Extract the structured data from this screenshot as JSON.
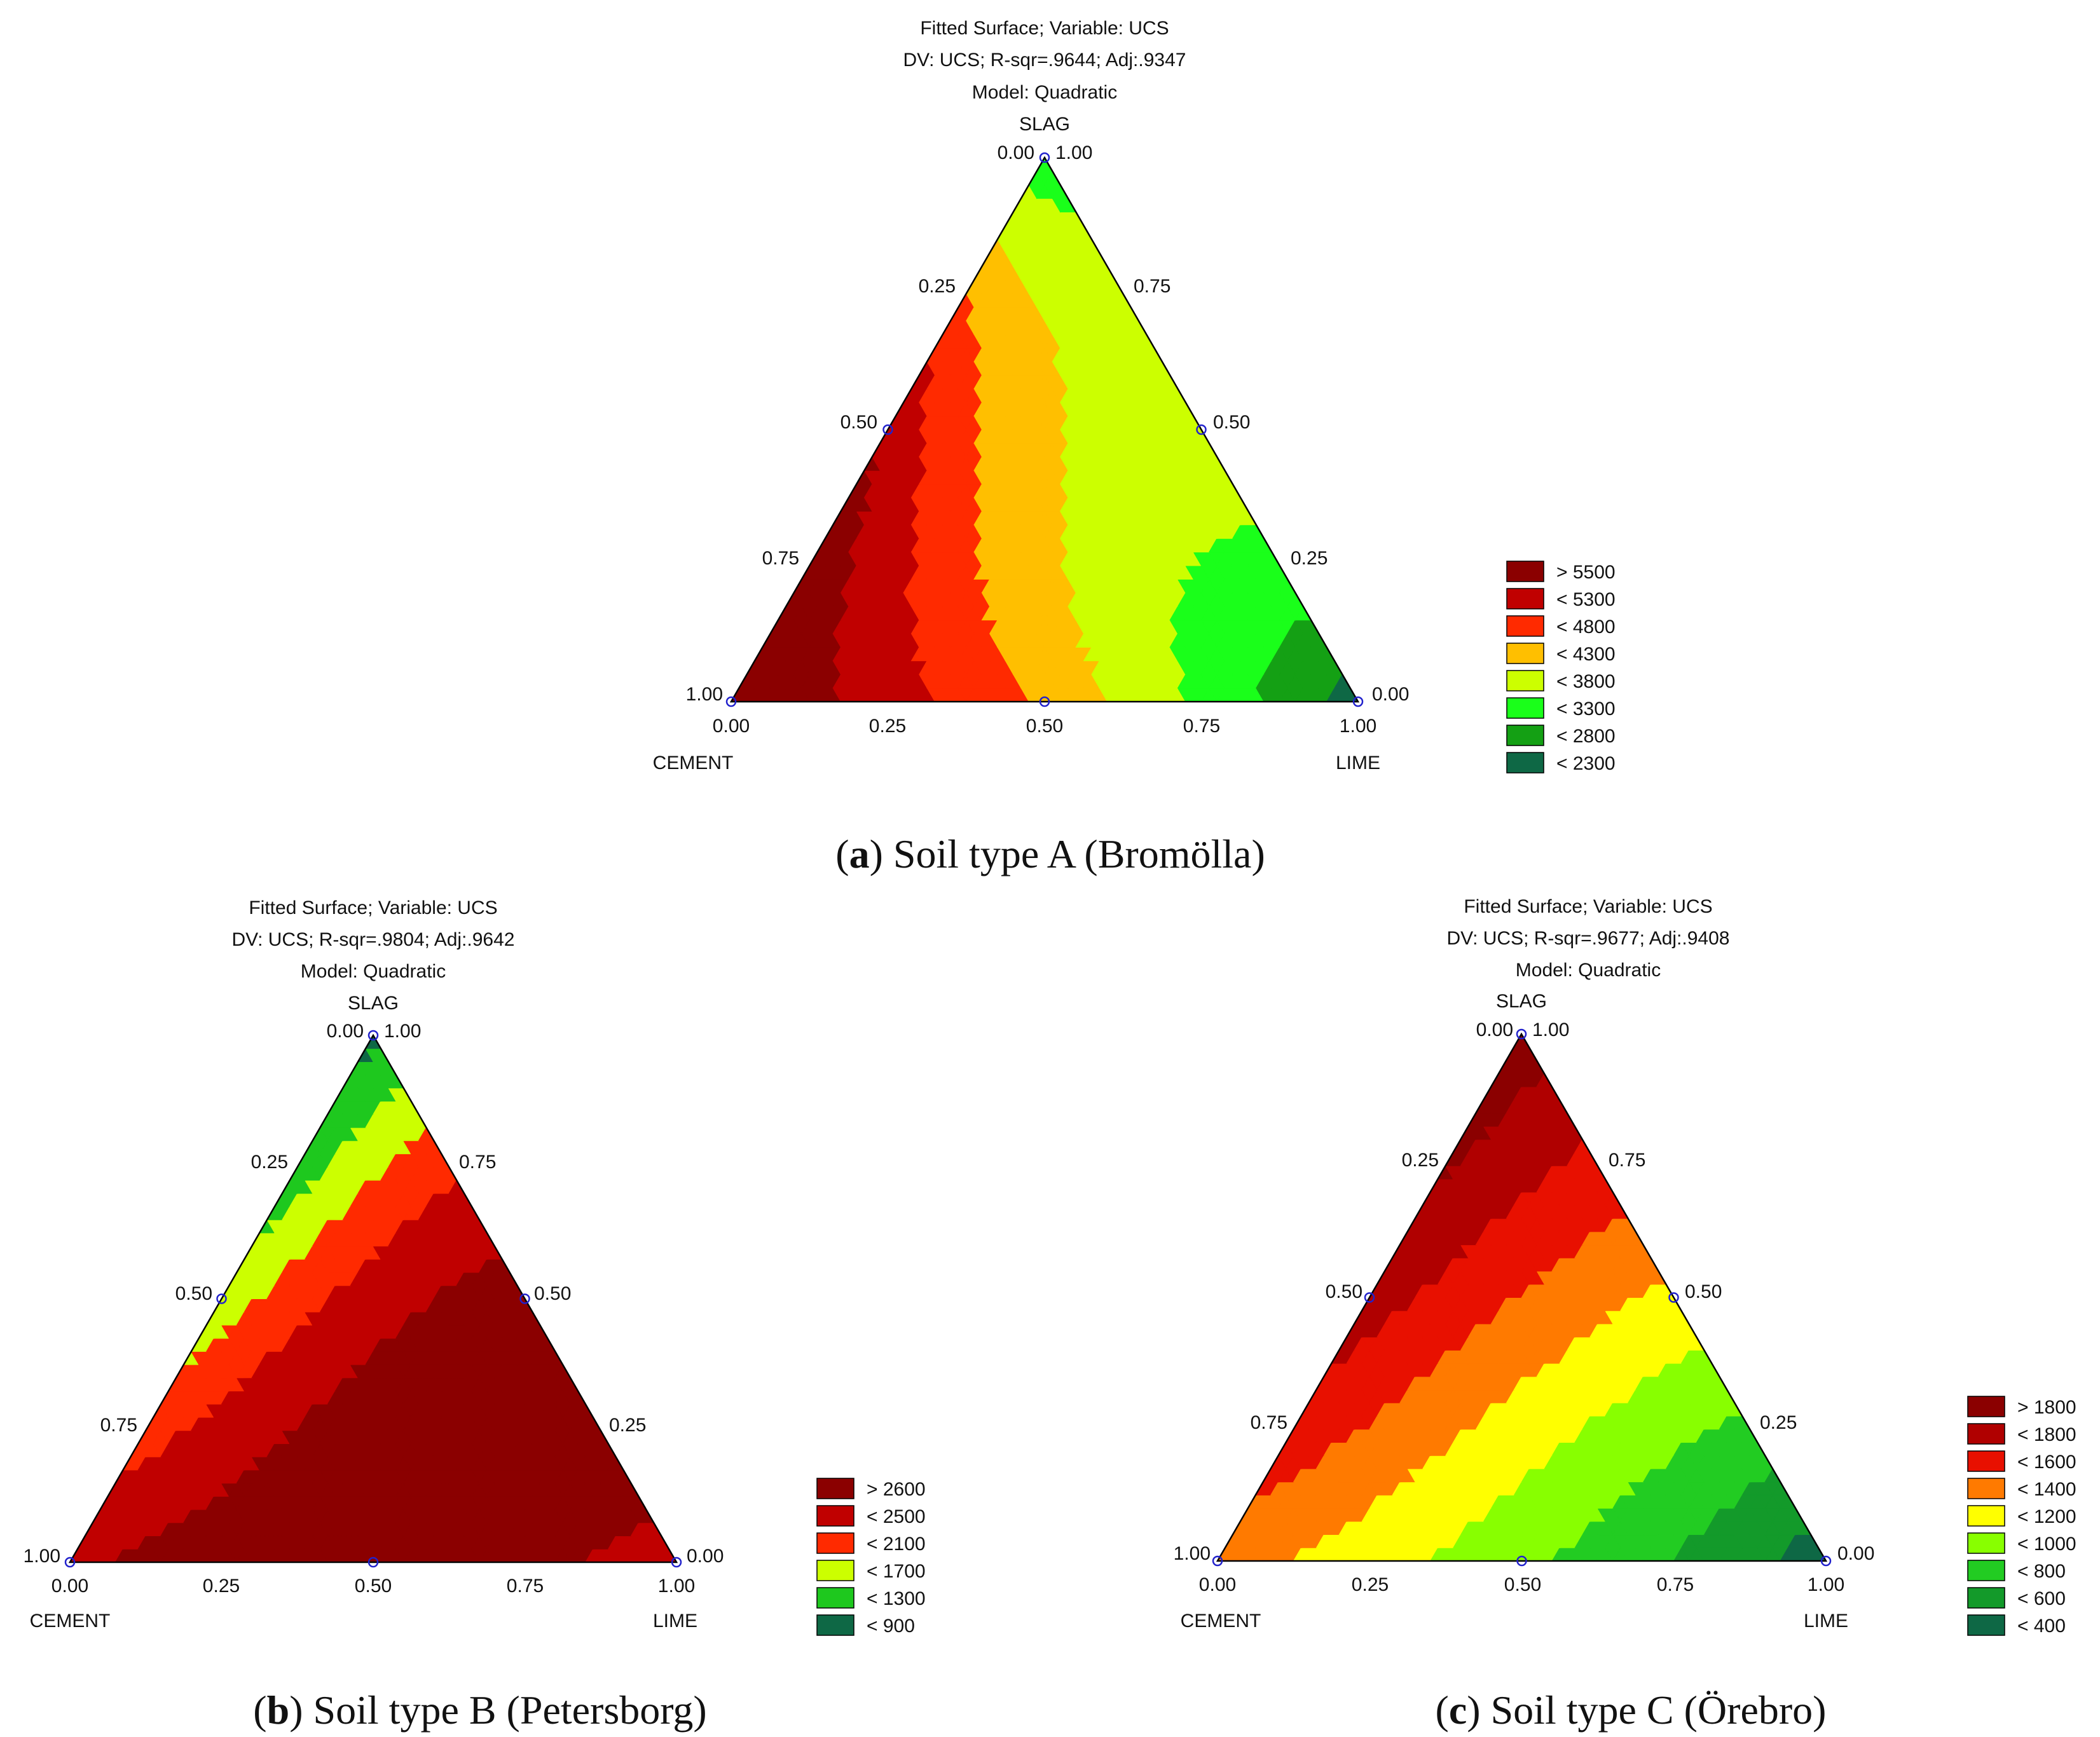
{
  "chart_data": [
    {
      "type": "ternary-contour",
      "id": "a",
      "title_lines": [
        "Fitted Surface; Variable: UCS",
        "DV: UCS; R-sqr=.9644; Adj:.9347",
        "Model: Quadratic"
      ],
      "axes": {
        "top": "SLAG",
        "left": "CEMENT",
        "right": "LIME"
      },
      "ticks": [
        "0.00",
        "0.25",
        "0.50",
        "0.75",
        "1.00"
      ],
      "caption_letter": "a",
      "caption_text": " Soil type A (Bromölla)",
      "legend": [
        {
          "label": "> 5500",
          "color": "#8b0000"
        },
        {
          "label": "< 5300",
          "color": "#c00000"
        },
        {
          "label": "< 4800",
          "color": "#ff2a00"
        },
        {
          "label": "< 4300",
          "color": "#ffbf00"
        },
        {
          "label": "< 3800",
          "color": "#ccff00"
        },
        {
          "label": "< 3300",
          "color": "#1aff1a"
        },
        {
          "label": "< 2800",
          "color": "#14a014"
        },
        {
          "label": "< 2300",
          "color": "#0e6845"
        }
      ],
      "design_points": [
        {
          "cement": 1,
          "slag": 0,
          "lime": 0
        },
        {
          "cement": 0,
          "slag": 1,
          "lime": 0
        },
        {
          "cement": 0,
          "slag": 0,
          "lime": 1
        },
        {
          "cement": 0.5,
          "slag": 0.5,
          "lime": 0
        },
        {
          "cement": 0,
          "slag": 0.5,
          "lime": 0.5
        },
        {
          "cement": 0.5,
          "slag": 0,
          "lime": 0.5
        }
      ],
      "vertex_values": {
        "cement": 5800,
        "slag": 3000,
        "lime": 2100
      },
      "edge_values": {
        "cement_slag": 5200,
        "slag_lime": 3600,
        "cement_lime": 4200
      },
      "interior_value": 3900
    },
    {
      "type": "ternary-contour",
      "id": "b",
      "title_lines": [
        "Fitted Surface; Variable: UCS",
        "DV: UCS; R-sqr=.9804; Adj:.9642",
        "Model: Quadratic"
      ],
      "axes": {
        "top": "SLAG",
        "left": "CEMENT",
        "right": "LIME"
      },
      "ticks": [
        "0.00",
        "0.25",
        "0.50",
        "0.75",
        "1.00"
      ],
      "caption_letter": "b",
      "caption_text": " Soil type B (Petersborg)",
      "legend": [
        {
          "label": "> 2600",
          "color": "#8b0000"
        },
        {
          "label": "< 2500",
          "color": "#c00000"
        },
        {
          "label": "< 2100",
          "color": "#ff2a00"
        },
        {
          "label": "< 1700",
          "color": "#ccff00"
        },
        {
          "label": "< 1300",
          "color": "#1ec81e"
        },
        {
          "label": "< 900",
          "color": "#0e6845"
        }
      ],
      "design_points": [
        {
          "cement": 1,
          "slag": 0,
          "lime": 0
        },
        {
          "cement": 0,
          "slag": 1,
          "lime": 0
        },
        {
          "cement": 0,
          "slag": 0,
          "lime": 1
        },
        {
          "cement": 0.5,
          "slag": 0.5,
          "lime": 0
        },
        {
          "cement": 0,
          "slag": 0.5,
          "lime": 0.5
        },
        {
          "cement": 0.5,
          "slag": 0,
          "lime": 0.5
        }
      ],
      "vertex_values": {
        "cement": 2450,
        "slag": 800,
        "lime": 2300
      },
      "edge_values": {
        "cement_slag": 1450,
        "slag_lime": 2650,
        "cement_lime": 2700
      },
      "interior_value": 2600
    },
    {
      "type": "ternary-contour",
      "id": "c",
      "title_lines": [
        "Fitted Surface; Variable: UCS",
        "DV: UCS; R-sqr=.9677; Adj:.9408",
        "Model: Quadratic"
      ],
      "axes": {
        "top": "SLAG",
        "left": "CEMENT",
        "right": "LIME"
      },
      "ticks": [
        "0.00",
        "0.25",
        "0.50",
        "0.75",
        "1.00"
      ],
      "caption_letter": "c",
      "caption_text": " Soil type C (Örebro)",
      "legend": [
        {
          "label": "> 1800",
          "color": "#8b0000"
        },
        {
          "label": "< 1800",
          "color": "#b00000"
        },
        {
          "label": "< 1600",
          "color": "#e81000"
        },
        {
          "label": "< 1400",
          "color": "#ff7a00"
        },
        {
          "label": "< 1200",
          "color": "#ffff00"
        },
        {
          "label": "< 1000",
          "color": "#88ff00"
        },
        {
          "label": "< 800",
          "color": "#22cc22"
        },
        {
          "label": "< 600",
          "color": "#139a2a"
        },
        {
          "label": "< 400",
          "color": "#0e6845"
        }
      ],
      "design_points": [
        {
          "cement": 1,
          "slag": 0,
          "lime": 0
        },
        {
          "cement": 0,
          "slag": 1,
          "lime": 0
        },
        {
          "cement": 0,
          "slag": 0,
          "lime": 1
        },
        {
          "cement": 0.5,
          "slag": 0.5,
          "lime": 0
        },
        {
          "cement": 0,
          "slag": 0.5,
          "lime": 0.5
        },
        {
          "cement": 0.5,
          "slag": 0,
          "lime": 0.5
        }
      ],
      "vertex_values": {
        "cement": 1300,
        "slag": 1900,
        "lime": 300
      },
      "edge_values": {
        "cement_slag": 1700,
        "slag_lime": 1150,
        "cement_lime": 850
      },
      "interior_value": 1200
    }
  ]
}
